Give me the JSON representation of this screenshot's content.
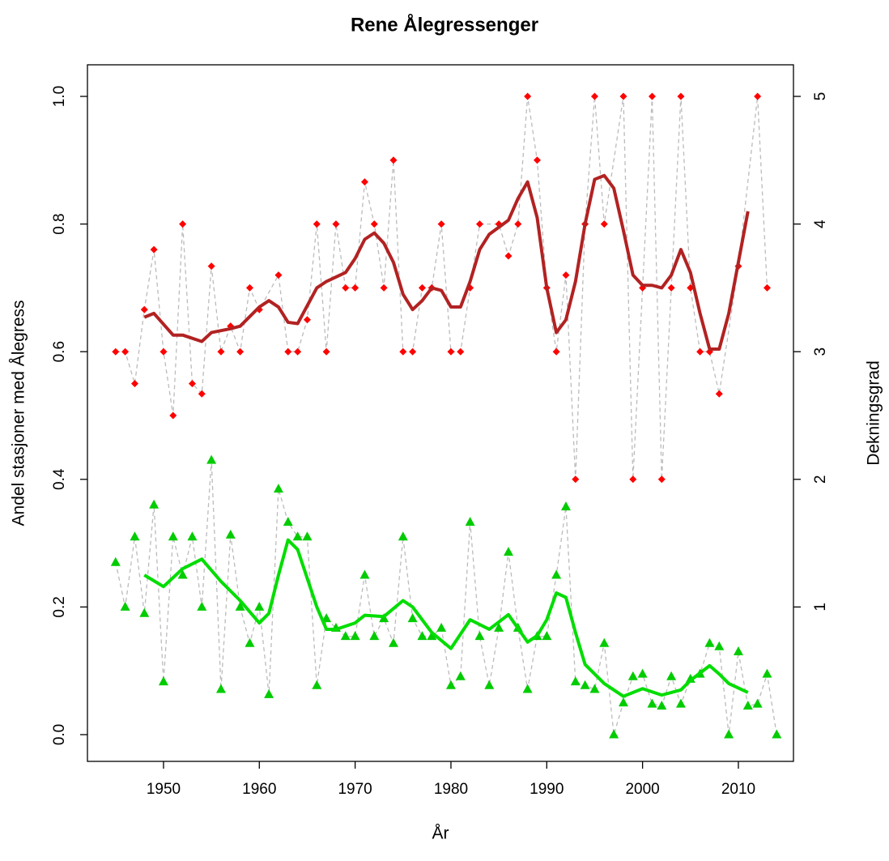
{
  "chart_data": {
    "type": "line",
    "title": "Rene Ålegressenger",
    "x_label": "År",
    "y_label": "Andel stasjoner med Ålegress",
    "y2_label": "Dekningsgrad",
    "y_label_color": "#00cc00",
    "y2_label_color": "#b22222",
    "xlim": [
      1942.06,
      2015.75
    ],
    "xticks": [
      1950,
      1960,
      1970,
      1980,
      1990,
      2000,
      2010
    ],
    "ylim": [
      -0.0419,
      1.0495
    ],
    "yticks": [
      {
        "value": 0,
        "label": "0.0"
      },
      0.2,
      0.4,
      0.6,
      0.8,
      {
        "value": 1,
        "label": "1.0"
      }
    ],
    "y2lim": [
      -0.2095,
      5.2475
    ],
    "y2ticks": [
      1,
      2,
      3,
      4,
      5
    ],
    "connector_color": "#bbbbbb",
    "series": [
      {
        "style": "points",
        "marker": "triangle",
        "color": "#00cc00",
        "axis": "y",
        "x": [
          1945,
          1946,
          1947,
          1948,
          1949,
          1950,
          1951,
          1952,
          1953,
          1954,
          1955,
          1956,
          1957,
          1958,
          1959,
          1960,
          1961,
          1962,
          1963,
          1964,
          1965,
          1966,
          1967,
          1968,
          1969,
          1970,
          1971,
          1972,
          1973,
          1974,
          1975,
          1976,
          1977,
          1978,
          1979,
          1980,
          1981,
          1982,
          1983,
          1984,
          1985,
          1986,
          1987,
          1988,
          1989,
          1990,
          1991,
          1992,
          1993,
          1994,
          1995,
          1996,
          1997,
          1998,
          1999,
          2000,
          2001,
          2002,
          2003,
          2004,
          2005,
          2006,
          2007,
          2008,
          2009,
          2010,
          2011,
          2012,
          2013,
          2014
        ],
        "values": [
          0.27,
          0.2,
          0.31,
          0.19,
          0.36,
          0.083,
          0.31,
          0.25,
          0.31,
          0.2,
          0.43,
          0.071,
          0.313,
          0.2,
          0.143,
          0.2,
          0.063,
          0.385,
          0.333,
          0.31,
          0.31,
          0.077,
          0.182,
          0.167,
          0.154,
          0.154,
          0.25,
          0.154,
          0.182,
          0.143,
          0.31,
          0.182,
          0.154,
          0.154,
          0.167,
          0.077,
          0.091,
          0.333,
          0.154,
          0.077,
          0.167,
          0.286,
          0.167,
          0.071,
          0.154,
          0.154,
          0.25,
          0.357,
          0.083,
          0.077,
          0.071,
          0.143,
          0,
          0.05,
          0.091,
          0.095,
          0.048,
          0.045,
          0.091,
          0.048,
          0.087,
          0.095,
          0.143,
          0.138,
          0,
          0.13,
          0.045,
          0.048,
          0.095,
          0
        ]
      },
      {
        "style": "line",
        "color": "#00dd00",
        "axis": "y",
        "x": [
          1948,
          1950,
          1952,
          1954,
          1956,
          1958,
          1960,
          1961,
          1962,
          1963,
          1964,
          1966,
          1967,
          1968,
          1970,
          1971,
          1973,
          1975,
          1976,
          1978,
          1980,
          1982,
          1984,
          1986,
          1988,
          1989,
          1990,
          1991,
          1992,
          1993,
          1994,
          1996,
          1998,
          2000,
          2002,
          2004,
          2005,
          2007,
          2008,
          2009,
          2011
        ],
        "values": [
          0.25,
          0.232,
          0.26,
          0.275,
          0.24,
          0.21,
          0.175,
          0.19,
          0.25,
          0.305,
          0.29,
          0.2,
          0.165,
          0.165,
          0.175,
          0.187,
          0.185,
          0.21,
          0.2,
          0.16,
          0.135,
          0.18,
          0.165,
          0.188,
          0.145,
          0.155,
          0.18,
          0.222,
          0.215,
          0.16,
          0.11,
          0.08,
          0.06,
          0.072,
          0.062,
          0.07,
          0.085,
          0.108,
          0.095,
          0.08,
          0.066
        ]
      },
      {
        "style": "points",
        "marker": "diamond",
        "color": "#ff0000",
        "axis": "y2",
        "x": [
          1945,
          1946,
          1947,
          1948,
          1949,
          1950,
          1951,
          1952,
          1953,
          1954,
          1955,
          1956,
          1957,
          1958,
          1959,
          1960,
          1962,
          1963,
          1964,
          1965,
          1966,
          1967,
          1968,
          1969,
          1970,
          1971,
          1972,
          1973,
          1974,
          1975,
          1976,
          1977,
          1978,
          1979,
          1980,
          1981,
          1982,
          1983,
          1985,
          1986,
          1987,
          1988,
          1989,
          1990,
          1991,
          1992,
          1993,
          1994,
          1995,
          1996,
          1998,
          1999,
          2000,
          2001,
          2002,
          2003,
          2004,
          2005,
          2006,
          2007,
          2008,
          2010,
          2012,
          2013
        ],
        "values": [
          3,
          3,
          2.75,
          3.33,
          3.8,
          3,
          2.5,
          4,
          2.75,
          2.67,
          3.67,
          3,
          3.2,
          3,
          3.5,
          3.33,
          3.6,
          3,
          3,
          3.25,
          4,
          3,
          4,
          3.5,
          3.5,
          4.33,
          4,
          3.5,
          4.5,
          3,
          3,
          3.5,
          3.5,
          4,
          3,
          3,
          3.5,
          4,
          4,
          3.75,
          4,
          5,
          4.5,
          3.5,
          3,
          3.6,
          2,
          4,
          5,
          4,
          5,
          2,
          3.5,
          5,
          2,
          3.5,
          5,
          3.5,
          3,
          3,
          2.67,
          3.67,
          5,
          3.5
        ]
      },
      {
        "style": "line",
        "color": "#b22222",
        "axis": "y2",
        "x": [
          1948,
          1949,
          1951,
          1952,
          1954,
          1955,
          1957,
          1958,
          1960,
          1961,
          1962,
          1963,
          1964,
          1966,
          1967,
          1969,
          1970,
          1971,
          1972,
          1973,
          1974,
          1975,
          1976,
          1977,
          1978,
          1979,
          1980,
          1981,
          1982,
          1983,
          1984,
          1986,
          1987,
          1988,
          1989,
          1990,
          1991,
          1992,
          1993,
          1994,
          1995,
          1996,
          1997,
          1998,
          1999,
          2000,
          2001,
          2002,
          2003,
          2004,
          2005,
          2006,
          2007,
          2008,
          2009,
          2010,
          2011
        ],
        "values": [
          3.27,
          3.3,
          3.13,
          3.13,
          3.08,
          3.15,
          3.18,
          3.2,
          3.35,
          3.4,
          3.35,
          3.23,
          3.22,
          3.5,
          3.55,
          3.62,
          3.73,
          3.88,
          3.93,
          3.85,
          3.7,
          3.45,
          3.33,
          3.4,
          3.5,
          3.48,
          3.35,
          3.35,
          3.55,
          3.8,
          3.92,
          4.03,
          4.2,
          4.33,
          4.05,
          3.5,
          3.15,
          3.25,
          3.55,
          4,
          4.35,
          4.38,
          4.28,
          3.95,
          3.6,
          3.52,
          3.52,
          3.5,
          3.6,
          3.8,
          3.62,
          3.3,
          3.02,
          3.02,
          3.3,
          3.7,
          4.1
        ]
      }
    ]
  }
}
